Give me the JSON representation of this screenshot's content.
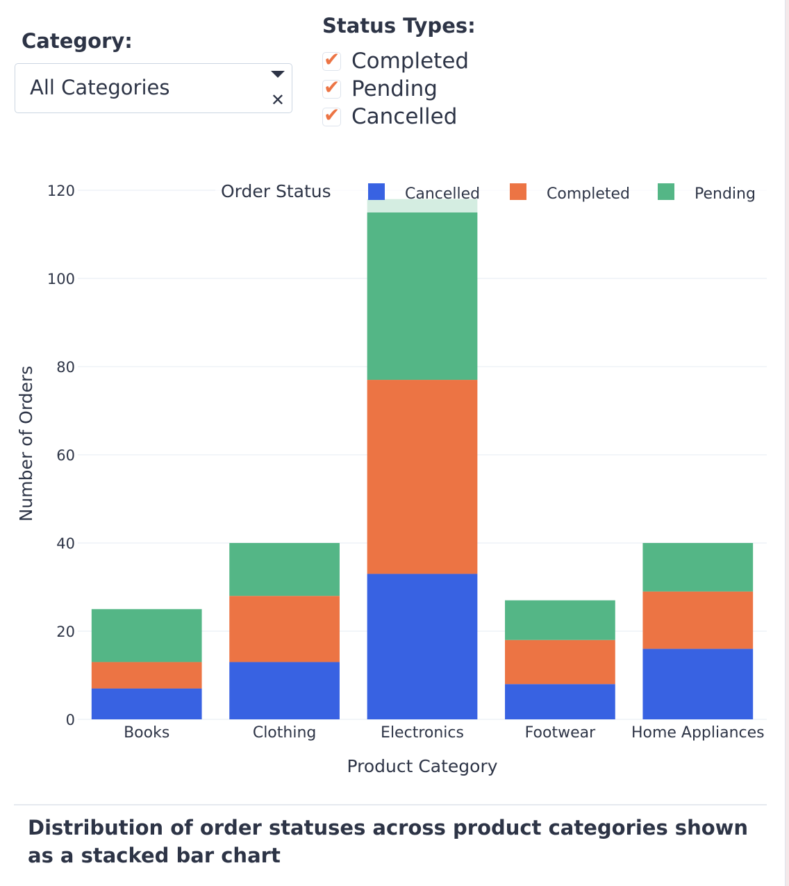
{
  "filters": {
    "category": {
      "label": "Category:",
      "selected": "All Categories"
    },
    "status_types": {
      "label": "Status Types:",
      "options": [
        {
          "label": "Completed",
          "checked": true
        },
        {
          "label": "Pending",
          "checked": true
        },
        {
          "label": "Cancelled",
          "checked": true
        }
      ]
    }
  },
  "colors": {
    "Cancelled": "#3862e2",
    "Completed": "#ec7444",
    "Pending": "#54b686",
    "text": "#2d3446",
    "grid": "#eef2f7"
  },
  "chart_data": {
    "type": "bar",
    "stacked": true,
    "categories": [
      "Books",
      "Clothing",
      "Electronics",
      "Footwear",
      "Home Appliances"
    ],
    "series": [
      {
        "name": "Cancelled",
        "values": [
          7,
          13,
          33,
          8,
          16
        ]
      },
      {
        "name": "Completed",
        "values": [
          6,
          15,
          44,
          10,
          13
        ]
      },
      {
        "name": "Pending",
        "values": [
          12,
          12,
          41,
          9,
          11
        ]
      }
    ],
    "title": "",
    "xlabel": "Product Category",
    "ylabel": "Number of Orders",
    "ylim": [
      0,
      120
    ],
    "yticks": [
      0,
      20,
      40,
      60,
      80,
      100,
      120
    ],
    "grid": true,
    "legend": {
      "title": "Order Status",
      "placement": "top-right",
      "orientation": "horizontal",
      "items": [
        "Cancelled",
        "Completed",
        "Pending"
      ]
    }
  },
  "caption": "Distribution of order statuses across product categories shown as a stacked bar chart"
}
